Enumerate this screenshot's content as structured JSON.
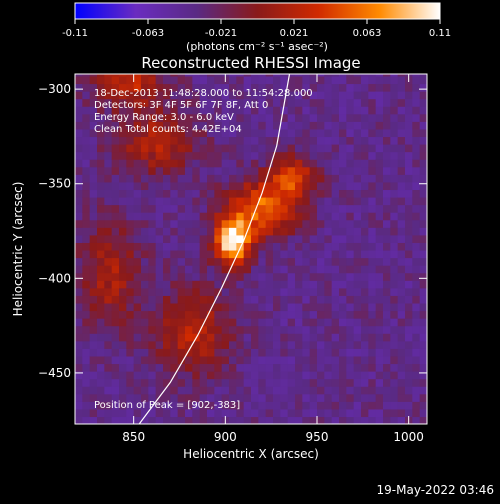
{
  "chart_data": {
    "type": "heatmap",
    "title": "Reconstructed RHESSI Image",
    "xlabel": "Heliocentric X (arcsec)",
    "ylabel": "Heliocentric Y (arcsec)",
    "xlim": [
      818,
      1010
    ],
    "ylim": [
      -477,
      -292
    ],
    "x_ticks": [
      850,
      900,
      950,
      1000
    ],
    "y_ticks": [
      -300,
      -350,
      -400,
      -450
    ],
    "colorbar": {
      "min": -0.11,
      "max": 0.11,
      "ticks": [
        "-0.11",
        "-0.063",
        "-0.021",
        "0.021",
        "0.063",
        "0.11"
      ],
      "units": "(photons cm⁻² s⁻¹ asec⁻²)",
      "colormap": [
        "#0000ff",
        "#6a2cc0",
        "#5a2a84",
        "#8a1a1a",
        "#d02a00",
        "#ff8a00",
        "#ffffff"
      ]
    },
    "annotations": [
      "18-Dec-2013 11:48:28.000 to 11:54:28.000",
      "Detectors: 3F 4F 5F 6F 7F 8F, Att 0",
      "Energy Range: 3.0 - 6.0 keV",
      "Clean    Total counts: 4.42E+04"
    ],
    "peak_label": "Position of Peak = [902,-383]",
    "peak": {
      "x": 902,
      "y": -383
    },
    "limb_curve": [
      [
        853,
        -477
      ],
      [
        870,
        -455
      ],
      [
        885,
        -430
      ],
      [
        898,
        -405
      ],
      [
        910,
        -380
      ],
      [
        920,
        -355
      ],
      [
        928,
        -330
      ],
      [
        935,
        -292
      ]
    ],
    "emission_sources": [
      {
        "x": 902,
        "y": -383,
        "value": 0.11,
        "sx": 7,
        "sy": 9
      },
      {
        "x": 918,
        "y": -365,
        "value": 0.06,
        "sx": 14,
        "sy": 10
      },
      {
        "x": 935,
        "y": -348,
        "value": 0.035,
        "sx": 10,
        "sy": 8
      },
      {
        "x": 845,
        "y": -298,
        "value": 0.03,
        "sx": 14,
        "sy": 9
      },
      {
        "x": 860,
        "y": -330,
        "value": 0.02,
        "sx": 16,
        "sy": 12
      },
      {
        "x": 880,
        "y": -430,
        "value": 0.025,
        "sx": 14,
        "sy": 16
      },
      {
        "x": 835,
        "y": -400,
        "value": 0.015,
        "sx": 12,
        "sy": 20
      }
    ],
    "background_level": -0.04
  },
  "footer": {
    "timestamp": "19-May-2022 03:46"
  }
}
